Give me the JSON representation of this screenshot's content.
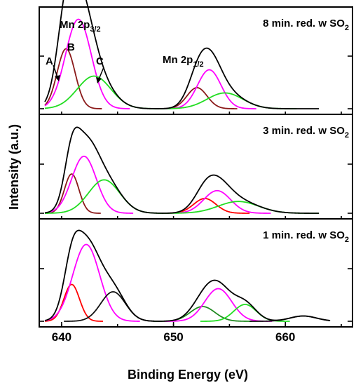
{
  "chart_data": {
    "type": "line",
    "xlabel": "Binding Energy (eV)",
    "ylabel": "Intensity (a.u.)",
    "xlim": [
      638,
      666
    ],
    "x_ticks": [
      "640",
      "650",
      "660"
    ],
    "x_tick_values": [
      640,
      650,
      660
    ],
    "colors": {
      "envelope": "#000000",
      "peak_A": "#8b1a1a",
      "peak_B": "#ff00ff",
      "peak_C": "#22dd22",
      "dark_red": "#8b0000",
      "red": "#ff0000"
    },
    "panels": [
      {
        "title": "8 min. red. w SO2",
        "title_main": "8 min. red. w SO",
        "title_sub": "2",
        "envelope_color": "#000000",
        "peaks": [
          {
            "center": 640.4,
            "height": 0.57,
            "width": 0.8,
            "color": "#8b1a1a"
          },
          {
            "center": 641.5,
            "height": 0.85,
            "width": 1.15,
            "color": "#ff00ff"
          },
          {
            "center": 642.9,
            "height": 0.31,
            "width": 1.5,
            "color": "#22dd22"
          },
          {
            "center": 652.1,
            "height": 0.2,
            "width": 0.9,
            "color": "#8b1a1a"
          },
          {
            "center": 653.2,
            "height": 0.37,
            "width": 1.05,
            "color": "#ff00ff"
          },
          {
            "center": 654.6,
            "height": 0.15,
            "width": 1.6,
            "color": "#22dd22"
          }
        ],
        "envelope_range": [
          638.5,
          663.0
        ],
        "annotations": {
          "mn_2p32": {
            "main": "Mn 2p",
            "sub": "3/2"
          },
          "mn_2p12": {
            "main": "Mn 2p",
            "sub": "1/2"
          },
          "A": "A",
          "B": "B",
          "C": "C"
        }
      },
      {
        "title": "3 min. red. w SO2",
        "title_main": "3 min. red. w SO",
        "title_sub": "2",
        "envelope_color": "#000000",
        "peaks": [
          {
            "center": 640.9,
            "height": 0.4,
            "width": 0.65,
            "color": "#8b1a1a"
          },
          {
            "center": 642.0,
            "height": 0.58,
            "width": 1.1,
            "color": "#ff00ff"
          },
          {
            "center": 643.8,
            "height": 0.34,
            "width": 1.4,
            "color": "#22dd22"
          },
          {
            "center": 652.8,
            "height": 0.15,
            "width": 1.0,
            "color": "#ff0000"
          },
          {
            "center": 653.9,
            "height": 0.23,
            "width": 1.2,
            "color": "#ff00ff"
          },
          {
            "center": 655.8,
            "height": 0.12,
            "width": 1.8,
            "color": "#22dd22"
          }
        ],
        "envelope_range": [
          638.5,
          663.0
        ]
      },
      {
        "title": "1 min. red. w SO2",
        "title_main": "1 min. red. w SO",
        "title_sub": "2",
        "envelope_color": "#000000",
        "peaks": [
          {
            "center": 640.9,
            "height": 0.35,
            "width": 0.7,
            "color": "#ff0000"
          },
          {
            "center": 642.2,
            "height": 0.73,
            "width": 1.2,
            "color": "#ff00ff"
          },
          {
            "center": 644.6,
            "height": 0.28,
            "width": 1.1,
            "color": "#111111"
          },
          {
            "center": 652.6,
            "height": 0.14,
            "width": 1.1,
            "color": "#228b22"
          },
          {
            "center": 654.0,
            "height": 0.31,
            "width": 1.2,
            "color": "#ff00ff"
          },
          {
            "center": 656.4,
            "height": 0.16,
            "width": 1.0,
            "color": "#22dd22"
          },
          {
            "center": 661.6,
            "height": 0.05,
            "width": 1.2,
            "color": "#111111"
          }
        ],
        "envelope_range": [
          638.5,
          664.0
        ]
      }
    ]
  }
}
